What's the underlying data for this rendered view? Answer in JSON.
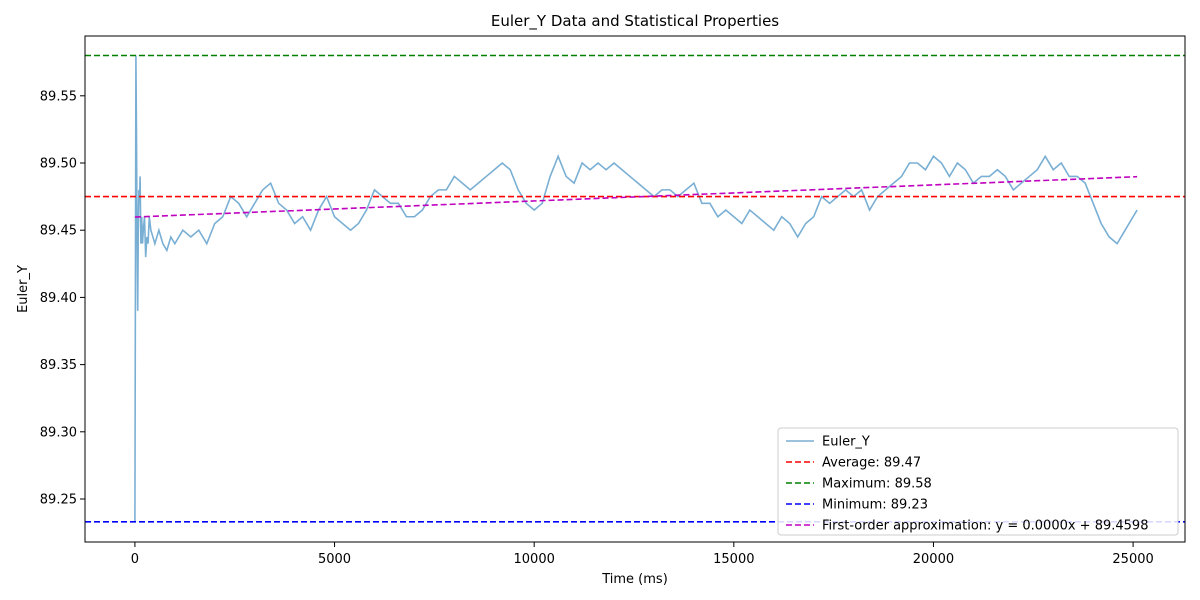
{
  "chart_data": {
    "type": "line",
    "title": "Euler_Y Data and Statistical Properties",
    "xlabel": "Time (ms)",
    "ylabel": "Euler_Y",
    "xlim": [
      -1250,
      26300
    ],
    "ylim": [
      89.218,
      89.5945
    ],
    "xticks": [
      0,
      5000,
      10000,
      15000,
      20000,
      25000
    ],
    "xtick_labels": [
      "0",
      "5000",
      "10000",
      "15000",
      "20000",
      "25000"
    ],
    "yticks": [
      89.25,
      89.3,
      89.35,
      89.4,
      89.45,
      89.5,
      89.55
    ],
    "ytick_labels": [
      "89.25",
      "89.30",
      "89.35",
      "89.40",
      "89.45",
      "89.50",
      "89.55"
    ],
    "grid": false,
    "legend_position": "lower right",
    "series": [
      {
        "name": "Euler_Y",
        "color": "#7aafd4",
        "style": "solid",
        "x": [
          0,
          25,
          40,
          55,
          70,
          85,
          100,
          115,
          130,
          150,
          170,
          190,
          210,
          240,
          270,
          300,
          330,
          360,
          400,
          450,
          500,
          600,
          700,
          800,
          900,
          1000,
          1200,
          1400,
          1600,
          1800,
          2000,
          2200,
          2400,
          2600,
          2800,
          3000,
          3200,
          3400,
          3600,
          3800,
          4000,
          4200,
          4400,
          4600,
          4800,
          5000,
          5200,
          5400,
          5600,
          5800,
          6000,
          6200,
          6400,
          6600,
          6800,
          7000,
          7200,
          7400,
          7600,
          7800,
          8000,
          8200,
          8400,
          8600,
          8800,
          9000,
          9200,
          9400,
          9600,
          9800,
          10000,
          10200,
          10400,
          10600,
          10800,
          11000,
          11200,
          11400,
          11600,
          11800,
          12000,
          12200,
          12400,
          12600,
          12800,
          13000,
          13200,
          13400,
          13600,
          13800,
          14000,
          14200,
          14400,
          14600,
          14800,
          15000,
          15200,
          15400,
          15600,
          15800,
          16000,
          16200,
          16400,
          16600,
          16800,
          17000,
          17200,
          17400,
          17600,
          17800,
          18000,
          18200,
          18400,
          18600,
          18800,
          19000,
          19200,
          19400,
          19600,
          19800,
          20000,
          20200,
          20400,
          20600,
          20800,
          21000,
          21200,
          21400,
          21600,
          21800,
          22000,
          22200,
          22400,
          22600,
          22800,
          23000,
          23200,
          23400,
          23600,
          23800,
          24000,
          24200,
          24400,
          24600,
          24800,
          25000,
          25100
        ],
        "y": [
          89.233,
          89.58,
          89.52,
          89.44,
          89.39,
          89.45,
          89.48,
          89.47,
          89.49,
          89.44,
          89.46,
          89.44,
          89.45,
          89.46,
          89.43,
          89.445,
          89.44,
          89.46,
          89.45,
          89.445,
          89.44,
          89.45,
          89.44,
          89.435,
          89.445,
          89.44,
          89.45,
          89.445,
          89.45,
          89.44,
          89.455,
          89.46,
          89.475,
          89.47,
          89.46,
          89.47,
          89.48,
          89.485,
          89.47,
          89.465,
          89.455,
          89.46,
          89.45,
          89.465,
          89.475,
          89.46,
          89.455,
          89.45,
          89.455,
          89.465,
          89.48,
          89.475,
          89.47,
          89.47,
          89.46,
          89.46,
          89.465,
          89.475,
          89.48,
          89.48,
          89.49,
          89.485,
          89.48,
          89.485,
          89.49,
          89.495,
          89.5,
          89.495,
          89.48,
          89.47,
          89.465,
          89.47,
          89.49,
          89.505,
          89.49,
          89.485,
          89.5,
          89.495,
          89.5,
          89.495,
          89.5,
          89.495,
          89.49,
          89.485,
          89.48,
          89.475,
          89.48,
          89.48,
          89.475,
          89.48,
          89.485,
          89.47,
          89.47,
          89.46,
          89.465,
          89.46,
          89.455,
          89.465,
          89.46,
          89.455,
          89.45,
          89.46,
          89.455,
          89.445,
          89.455,
          89.46,
          89.475,
          89.47,
          89.475,
          89.48,
          89.475,
          89.48,
          89.465,
          89.475,
          89.48,
          89.485,
          89.49,
          89.5,
          89.5,
          89.495,
          89.505,
          89.5,
          89.49,
          89.5,
          89.495,
          89.485,
          89.49,
          89.49,
          89.495,
          89.49,
          89.48,
          89.485,
          89.49,
          89.495,
          89.505,
          89.495,
          89.5,
          89.49,
          89.49,
          89.485,
          89.47,
          89.455,
          89.445,
          89.44,
          89.45,
          89.46,
          89.465
        ]
      },
      {
        "name": "Average: 89.47",
        "color": "#ff0000",
        "style": "dashed",
        "value": 89.475
      },
      {
        "name": "Maximum: 89.58",
        "color": "#008000",
        "style": "dashed",
        "value": 89.58
      },
      {
        "name": "Minimum: 89.23",
        "color": "#0000ff",
        "style": "dashed",
        "value": 89.233
      },
      {
        "name": "First-order approximation: y = 0.0000x + 89.4598",
        "color": "#bf00bf",
        "style": "dashed",
        "x": [
          0,
          25100
        ],
        "y": [
          89.4598,
          89.4898
        ]
      }
    ]
  }
}
